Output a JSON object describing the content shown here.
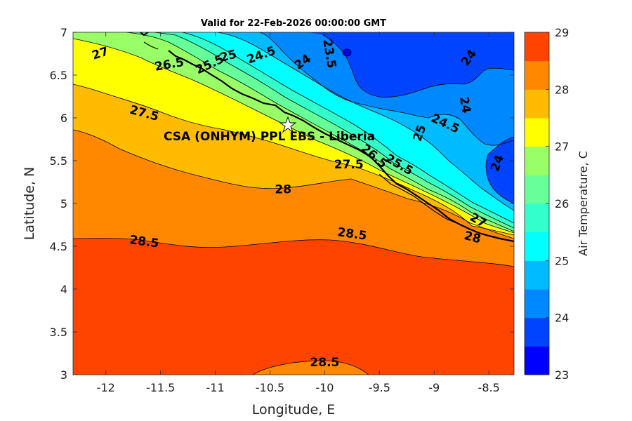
{
  "chart_data": {
    "type": "contour",
    "title": "Valid for 22-Feb-2026 00:00:00 GMT",
    "xlabel": "Longitude, E",
    "ylabel": "Latitude, N",
    "xlim": [
      -12.3,
      -8.27
    ],
    "ylim": [
      3,
      7
    ],
    "x_ticks": [
      -12,
      -11.5,
      -11,
      -10.5,
      -10,
      -9.5,
      -9,
      -8.5
    ],
    "x_tick_labels": [
      "-12",
      "-11.5",
      "-11",
      "-10.5",
      "-10",
      "-9.5",
      "-9",
      "-8.5"
    ],
    "y_ticks": [
      3,
      3.5,
      4,
      4.5,
      5,
      5.5,
      6,
      6.5,
      7
    ],
    "y_tick_labels": [
      "3",
      "3.5",
      "4",
      "4.5",
      "5",
      "5.5",
      "6",
      "6.5",
      "7"
    ],
    "colorbar": {
      "label": "Air Temperature, C",
      "range": [
        23,
        29
      ],
      "tick_values": [
        23,
        24,
        25,
        26,
        27,
        28,
        29
      ],
      "tick_labels": [
        "23",
        "24",
        "25",
        "26",
        "27",
        "28",
        "29"
      ],
      "levels": [
        23,
        23.5,
        24,
        24.5,
        25,
        25.5,
        26,
        26.5,
        27,
        27.5,
        28,
        28.5,
        29
      ],
      "colors": [
        "#0000ff",
        "#0044ff",
        "#0088ff",
        "#00bbff",
        "#00ffff",
        "#33ffcc",
        "#66ff99",
        "#99ff66",
        "#ffff00",
        "#ffbb00",
        "#ff8800",
        "#ff4400"
      ]
    },
    "contour_labels": [
      {
        "text": "27",
        "lon": -12.05,
        "lat": 6.75
      },
      {
        "text": "26.5",
        "lon": -11.42,
        "lat": 6.62
      },
      {
        "text": "25.5",
        "lon": -11.05,
        "lat": 6.62
      },
      {
        "text": "25",
        "lon": -10.88,
        "lat": 6.72
      },
      {
        "text": "24.5",
        "lon": -10.58,
        "lat": 6.73
      },
      {
        "text": "24",
        "lon": -10.2,
        "lat": 6.65
      },
      {
        "text": "23.5",
        "lon": -9.96,
        "lat": 6.75
      },
      {
        "text": "24",
        "lon": -8.68,
        "lat": 6.7
      },
      {
        "text": "24",
        "lon": -8.72,
        "lat": 6.15
      },
      {
        "text": "24.5",
        "lon": -8.9,
        "lat": 5.93
      },
      {
        "text": "25",
        "lon": -9.13,
        "lat": 5.82
      },
      {
        "text": "24",
        "lon": -8.42,
        "lat": 5.47
      },
      {
        "text": "27.5",
        "lon": -11.65,
        "lat": 6.05
      },
      {
        "text": "27.5",
        "lon": -9.78,
        "lat": 5.45
      },
      {
        "text": "26.5",
        "lon": -9.55,
        "lat": 5.55
      },
      {
        "text": "25.5",
        "lon": -9.32,
        "lat": 5.45
      },
      {
        "text": "28",
        "lon": -10.38,
        "lat": 5.16
      },
      {
        "text": "27",
        "lon": -8.6,
        "lat": 4.8
      },
      {
        "text": "28",
        "lon": -8.65,
        "lat": 4.6
      },
      {
        "text": "28.5",
        "lon": -11.65,
        "lat": 4.55
      },
      {
        "text": "28.5",
        "lon": -9.75,
        "lat": 4.64
      },
      {
        "text": "28.5",
        "lon": -10.0,
        "lat": 3.14
      }
    ],
    "station": {
      "name": "CSA (ONHYM) PPL EBS  - Liberia",
      "lon": -10.28,
      "lat": 5.92
    }
  }
}
